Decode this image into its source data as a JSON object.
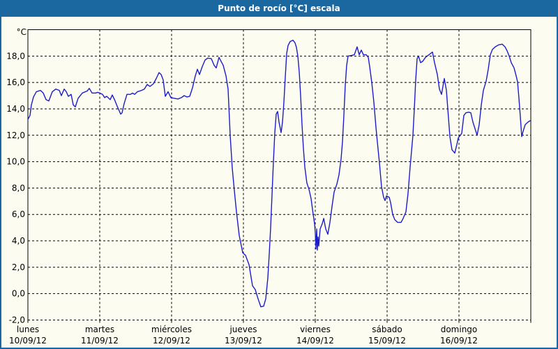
{
  "window": {
    "title": "Punto de rocío [°C] escala"
  },
  "colors": {
    "titlebar_bg": "#1b68a0",
    "titlebar_text": "#ffffff",
    "window_border": "#1b68a0",
    "chart_bg": "#fcfcf0",
    "plot_border": "#000000",
    "grid": "#000000",
    "line": "#1c1cc8",
    "label": "#000000"
  },
  "chart_data": {
    "type": "line",
    "title": "Punto de rocío [°C] escala",
    "y_unit_label": "°C",
    "ylim": [
      -2,
      20
    ],
    "xlim_days": [
      0,
      7
    ],
    "grid": "dashed",
    "legend": "none",
    "y_ticks": [
      {
        "value": 18,
        "label": "18,0"
      },
      {
        "value": 16,
        "label": "16,0"
      },
      {
        "value": 14,
        "label": "14,0"
      },
      {
        "value": 12,
        "label": "12,0"
      },
      {
        "value": 10,
        "label": "10,0"
      },
      {
        "value": 8,
        "label": "8,0"
      },
      {
        "value": 6,
        "label": "6,0"
      },
      {
        "value": 4,
        "label": "4,0"
      },
      {
        "value": 2,
        "label": "2,0"
      },
      {
        "value": 0,
        "label": "0,0"
      },
      {
        "value": -2,
        "label": "-2,0"
      }
    ],
    "x_days": [
      {
        "name": "lunes",
        "date": "10/09/12"
      },
      {
        "name": "martes",
        "date": "11/09/12"
      },
      {
        "name": "miércoles",
        "date": "12/09/12"
      },
      {
        "name": "jueves",
        "date": "13/09/12"
      },
      {
        "name": "viernes",
        "date": "14/09/12"
      },
      {
        "name": "sábado",
        "date": "15/09/12"
      },
      {
        "name": "domingo",
        "date": "16/09/12"
      }
    ],
    "series": [
      {
        "name": "Punto de rocío [°C]",
        "points": [
          [
            0.0,
            13.2
          ],
          [
            0.029,
            13.5
          ],
          [
            0.049,
            14.3
          ],
          [
            0.078,
            14.9
          ],
          [
            0.117,
            15.3
          ],
          [
            0.175,
            15.4
          ],
          [
            0.214,
            15.2
          ],
          [
            0.252,
            14.7
          ],
          [
            0.291,
            14.6
          ],
          [
            0.34,
            15.3
          ],
          [
            0.388,
            15.5
          ],
          [
            0.437,
            15.4
          ],
          [
            0.466,
            15.0
          ],
          [
            0.505,
            15.5
          ],
          [
            0.534,
            15.3
          ],
          [
            0.563,
            14.95
          ],
          [
            0.602,
            15.1
          ],
          [
            0.631,
            14.3
          ],
          [
            0.66,
            14.15
          ],
          [
            0.699,
            14.8
          ],
          [
            0.757,
            15.2
          ],
          [
            0.825,
            15.35
          ],
          [
            0.854,
            15.55
          ],
          [
            0.893,
            15.2
          ],
          [
            0.942,
            15.2
          ],
          [
            0.971,
            15.25
          ],
          [
            1.0,
            15.2
          ],
          [
            1.039,
            15.1
          ],
          [
            1.068,
            14.85
          ],
          [
            1.097,
            14.95
          ],
          [
            1.146,
            14.7
          ],
          [
            1.175,
            15.05
          ],
          [
            1.214,
            14.6
          ],
          [
            1.243,
            14.2
          ],
          [
            1.291,
            13.6
          ],
          [
            1.311,
            13.7
          ],
          [
            1.34,
            14.4
          ],
          [
            1.379,
            15.1
          ],
          [
            1.427,
            15.1
          ],
          [
            1.456,
            15.2
          ],
          [
            1.485,
            15.1
          ],
          [
            1.524,
            15.3
          ],
          [
            1.583,
            15.4
          ],
          [
            1.621,
            15.5
          ],
          [
            1.66,
            15.85
          ],
          [
            1.699,
            15.7
          ],
          [
            1.748,
            15.9
          ],
          [
            1.786,
            16.3
          ],
          [
            1.825,
            16.75
          ],
          [
            1.854,
            16.6
          ],
          [
            1.883,
            16.2
          ],
          [
            1.913,
            14.95
          ],
          [
            1.951,
            15.3
          ],
          [
            1.99,
            14.85
          ],
          [
            2.039,
            14.8
          ],
          [
            2.087,
            14.75
          ],
          [
            2.136,
            14.85
          ],
          [
            2.175,
            15.0
          ],
          [
            2.214,
            14.9
          ],
          [
            2.252,
            14.95
          ],
          [
            2.291,
            15.6
          ],
          [
            2.33,
            16.5
          ],
          [
            2.359,
            17.0
          ],
          [
            2.388,
            16.6
          ],
          [
            2.427,
            17.2
          ],
          [
            2.466,
            17.7
          ],
          [
            2.505,
            17.85
          ],
          [
            2.553,
            17.8
          ],
          [
            2.592,
            17.3
          ],
          [
            2.621,
            17.1
          ],
          [
            2.66,
            17.9
          ],
          [
            2.689,
            17.6
          ],
          [
            2.718,
            17.3
          ],
          [
            2.757,
            16.5
          ],
          [
            2.786,
            15.5
          ],
          [
            2.816,
            12.0
          ],
          [
            2.845,
            9.5
          ],
          [
            2.874,
            7.8
          ],
          [
            2.903,
            6.2
          ],
          [
            2.942,
            4.4
          ],
          [
            2.99,
            3.1
          ],
          [
            3.029,
            2.9
          ],
          [
            3.078,
            2.2
          ],
          [
            3.126,
            0.6
          ],
          [
            3.165,
            0.3
          ],
          [
            3.204,
            -0.4
          ],
          [
            3.243,
            -1.0
          ],
          [
            3.282,
            -0.95
          ],
          [
            3.311,
            -0.4
          ],
          [
            3.34,
            1.2
          ],
          [
            3.359,
            3.0
          ],
          [
            3.379,
            5.0
          ],
          [
            3.398,
            7.5
          ],
          [
            3.417,
            10.0
          ],
          [
            3.437,
            12.2
          ],
          [
            3.456,
            13.6
          ],
          [
            3.476,
            13.8
          ],
          [
            3.495,
            13.0
          ],
          [
            3.524,
            12.2
          ],
          [
            3.544,
            13.0
          ],
          [
            3.563,
            14.5
          ],
          [
            3.583,
            16.4
          ],
          [
            3.602,
            18.2
          ],
          [
            3.621,
            18.8
          ],
          [
            3.65,
            19.1
          ],
          [
            3.689,
            19.2
          ],
          [
            3.718,
            19.0
          ],
          [
            3.738,
            18.65
          ],
          [
            3.757,
            18.0
          ],
          [
            3.777,
            16.8
          ],
          [
            3.796,
            15.0
          ],
          [
            3.816,
            12.8
          ],
          [
            3.835,
            11.0
          ],
          [
            3.854,
            9.6
          ],
          [
            3.883,
            8.4
          ],
          [
            3.913,
            7.9
          ],
          [
            3.942,
            7.2
          ],
          [
            3.971,
            6.0
          ],
          [
            3.99,
            5.3
          ],
          [
            4.0,
            4.6
          ],
          [
            4.01,
            3.4
          ],
          [
            4.019,
            4.9
          ],
          [
            4.029,
            3.3
          ],
          [
            4.039,
            4.3
          ],
          [
            4.049,
            3.6
          ],
          [
            4.068,
            4.9
          ],
          [
            4.097,
            5.3
          ],
          [
            4.117,
            5.7
          ],
          [
            4.146,
            4.9
          ],
          [
            4.175,
            4.5
          ],
          [
            4.204,
            5.4
          ],
          [
            4.233,
            6.6
          ],
          [
            4.262,
            7.7
          ],
          [
            4.301,
            8.3
          ],
          [
            4.33,
            9.0
          ],
          [
            4.359,
            10.2
          ],
          [
            4.379,
            11.5
          ],
          [
            4.398,
            13.5
          ],
          [
            4.417,
            15.8
          ],
          [
            4.437,
            17.3
          ],
          [
            4.456,
            18.0
          ],
          [
            4.505,
            18.05
          ],
          [
            4.544,
            18.1
          ],
          [
            4.583,
            18.7
          ],
          [
            4.612,
            18.1
          ],
          [
            4.641,
            18.45
          ],
          [
            4.67,
            18.1
          ],
          [
            4.709,
            18.1
          ],
          [
            4.738,
            17.9
          ],
          [
            4.757,
            17.2
          ],
          [
            4.786,
            16.0
          ],
          [
            4.816,
            14.5
          ],
          [
            4.845,
            12.6
          ],
          [
            4.864,
            11.5
          ],
          [
            4.893,
            9.9
          ],
          [
            4.922,
            8.1
          ],
          [
            4.951,
            7.3
          ],
          [
            4.971,
            7.05
          ],
          [
            4.99,
            7.4
          ],
          [
            5.01,
            7.35
          ],
          [
            5.029,
            7.3
          ],
          [
            5.049,
            6.9
          ],
          [
            5.078,
            6.0
          ],
          [
            5.107,
            5.6
          ],
          [
            5.146,
            5.4
          ],
          [
            5.194,
            5.4
          ],
          [
            5.223,
            5.7
          ],
          [
            5.262,
            6.2
          ],
          [
            5.291,
            7.6
          ],
          [
            5.32,
            9.6
          ],
          [
            5.34,
            10.8
          ],
          [
            5.359,
            12.0
          ],
          [
            5.379,
            14.0
          ],
          [
            5.398,
            16.2
          ],
          [
            5.417,
            17.8
          ],
          [
            5.437,
            18.0
          ],
          [
            5.466,
            17.5
          ],
          [
            5.495,
            17.6
          ],
          [
            5.534,
            17.9
          ],
          [
            5.583,
            18.1
          ],
          [
            5.631,
            18.3
          ],
          [
            5.66,
            17.5
          ],
          [
            5.699,
            16.6
          ],
          [
            5.728,
            15.5
          ],
          [
            5.757,
            15.1
          ],
          [
            5.796,
            16.3
          ],
          [
            5.825,
            15.4
          ],
          [
            5.845,
            14.0
          ],
          [
            5.874,
            11.9
          ],
          [
            5.903,
            10.9
          ],
          [
            5.942,
            10.65
          ],
          [
            5.971,
            11.3
          ],
          [
            5.99,
            11.8
          ],
          [
            6.019,
            12.0
          ],
          [
            6.039,
            12.15
          ],
          [
            6.068,
            13.5
          ],
          [
            6.097,
            13.7
          ],
          [
            6.136,
            13.75
          ],
          [
            6.165,
            13.7
          ],
          [
            6.194,
            13.0
          ],
          [
            6.223,
            12.5
          ],
          [
            6.252,
            12.0
          ],
          [
            6.282,
            12.8
          ],
          [
            6.311,
            14.3
          ],
          [
            6.34,
            15.4
          ],
          [
            6.379,
            16.1
          ],
          [
            6.408,
            17.0
          ],
          [
            6.437,
            18.1
          ],
          [
            6.466,
            18.5
          ],
          [
            6.505,
            18.7
          ],
          [
            6.553,
            18.85
          ],
          [
            6.602,
            18.9
          ],
          [
            6.641,
            18.7
          ],
          [
            6.67,
            18.4
          ],
          [
            6.699,
            18.0
          ],
          [
            6.728,
            17.5
          ],
          [
            6.767,
            17.1
          ],
          [
            6.796,
            16.5
          ],
          [
            6.816,
            16.05
          ],
          [
            6.835,
            14.8
          ],
          [
            6.854,
            13.4
          ],
          [
            6.874,
            11.9
          ],
          [
            6.893,
            12.3
          ],
          [
            6.922,
            12.8
          ],
          [
            6.961,
            13.0
          ],
          [
            6.99,
            13.1
          ]
        ]
      }
    ]
  }
}
